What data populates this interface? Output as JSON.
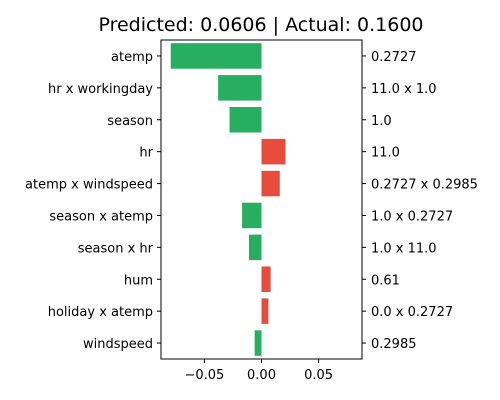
{
  "chart_data": {
    "type": "bar",
    "orientation": "horizontal",
    "title": "Predicted: 0.0606 | Actual: 0.1600",
    "xlabel": "",
    "ylabel": "",
    "xlim": [
      -0.088,
      0.088
    ],
    "x_ticks": [
      -0.05,
      0.0,
      0.05
    ],
    "x_tick_labels": [
      "−0.05",
      "0.00",
      "0.05"
    ],
    "grid": false,
    "colors": {
      "negative": "#27ae60",
      "positive": "#e74c3c"
    },
    "categories": [
      "atemp",
      "hr x workingday",
      "season",
      "hr",
      "atemp x windspeed",
      "season x atemp",
      "season x hr",
      "hum",
      "holiday x atemp",
      "windspeed"
    ],
    "values": [
      -0.0795,
      -0.038,
      -0.028,
      0.021,
      0.016,
      -0.017,
      -0.011,
      0.008,
      0.006,
      -0.006
    ],
    "feature_values": [
      "0.2727",
      "11.0 x 1.0",
      "1.0",
      "11.0",
      "0.2727 x 0.2985",
      "1.0 x 0.2727",
      "1.0 x 11.0",
      "0.61",
      "0.0 x 0.2727",
      "0.2985"
    ]
  }
}
